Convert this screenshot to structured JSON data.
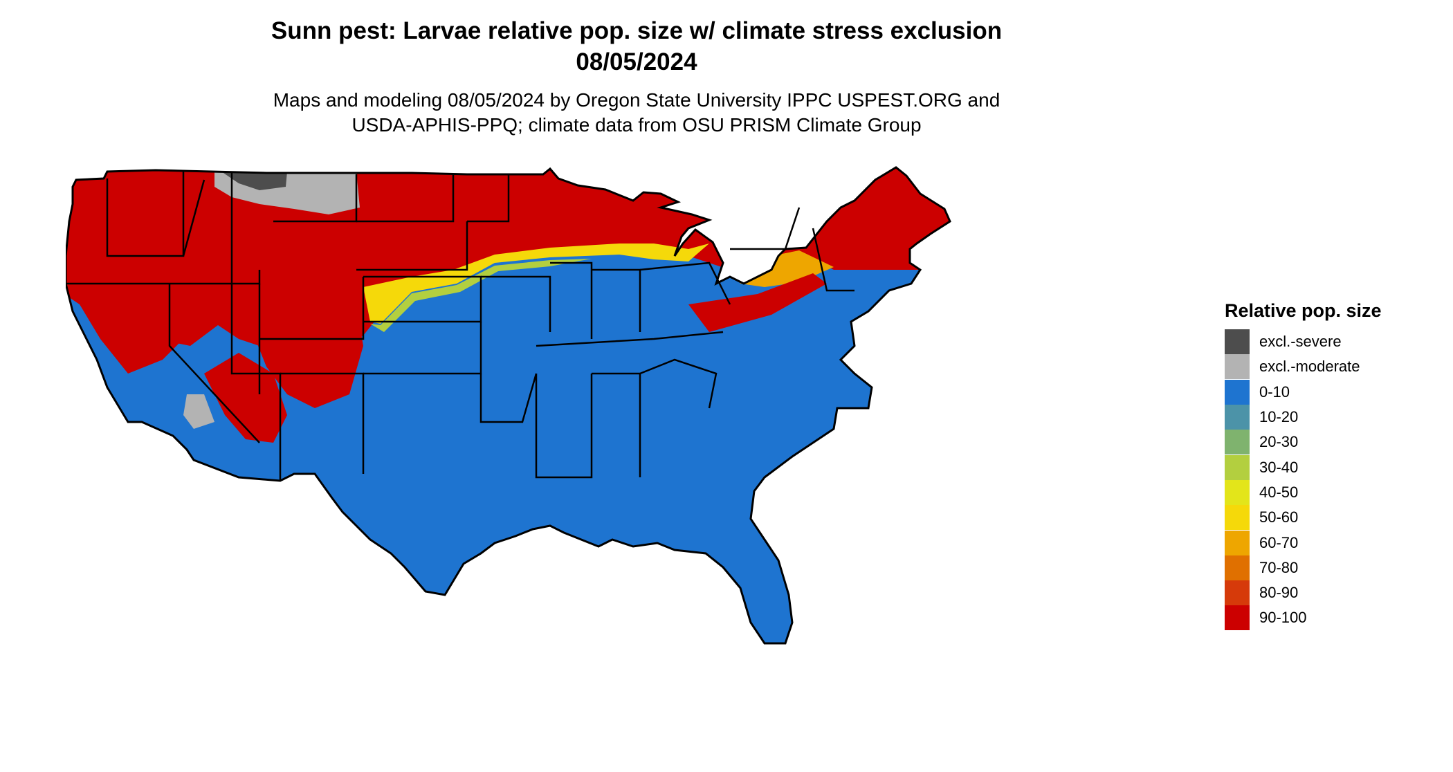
{
  "title": {
    "line1": "Sunn pest: Larvae relative pop. size w/ climate stress exclusion",
    "line2": "08/05/2024"
  },
  "subtitle": {
    "line1": "Maps and modeling 08/05/2024 by Oregon State University IPPC USPEST.ORG and",
    "line2": "USDA-APHIS-PPQ; climate data from OSU PRISM Climate Group"
  },
  "legend": {
    "title": "Relative pop. size",
    "items": [
      {
        "label": "excl.-severe",
        "color": "#4d4d4d"
      },
      {
        "label": "excl.-moderate",
        "color": "#b3b3b3"
      },
      {
        "label": "0-10",
        "color": "#1e74d0"
      },
      {
        "label": "10-20",
        "color": "#4c93a8"
      },
      {
        "label": "20-30",
        "color": "#7fb36e"
      },
      {
        "label": "30-40",
        "color": "#b3cf3f"
      },
      {
        "label": "40-50",
        "color": "#e3e51a"
      },
      {
        "label": "50-60",
        "color": "#f5d90a"
      },
      {
        "label": "60-70",
        "color": "#eea600"
      },
      {
        "label": "70-80",
        "color": "#e07000"
      },
      {
        "label": "80-90",
        "color": "#d63a0a"
      },
      {
        "label": "90-100",
        "color": "#cc0000"
      }
    ]
  },
  "map": {
    "region": "Contiguous United States",
    "colors": {
      "base": "#1e74d0",
      "high": "#cc0000",
      "mid": "#f5d90a",
      "orange": "#eea600",
      "light_green": "#b3cf3f",
      "excl_moderate": "#b3b3b3",
      "excl_severe": "#4d4d4d",
      "border": "#000000"
    }
  }
}
